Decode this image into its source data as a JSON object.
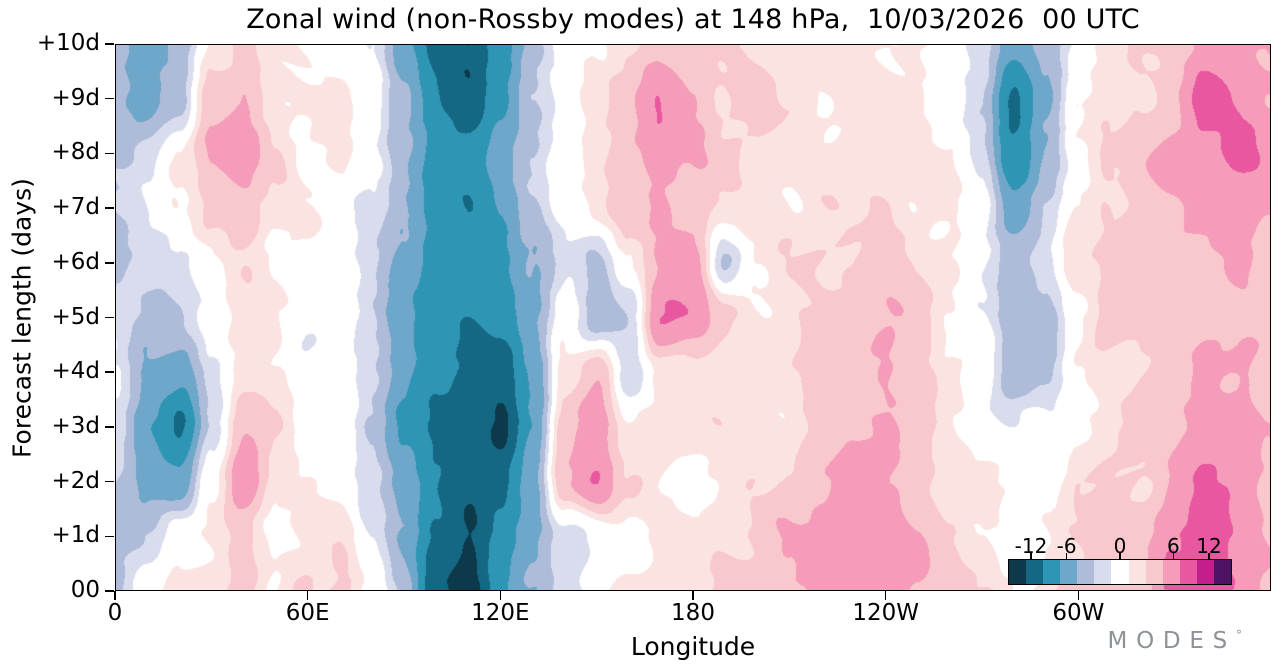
{
  "title": "Zonal wind (non-Rossby modes) at 148 hPa,  10/03/2026  00 UTC",
  "axes": {
    "x": {
      "label": "Longitude",
      "range_deg": [
        0,
        360
      ],
      "ticks": [
        {
          "value": 0,
          "label": "0"
        },
        {
          "value": 60,
          "label": "60E"
        },
        {
          "value": 120,
          "label": "120E"
        },
        {
          "value": 180,
          "label": "180"
        },
        {
          "value": 240,
          "label": "120W"
        },
        {
          "value": 300,
          "label": "60W"
        }
      ]
    },
    "y": {
      "label": "Forecast length (days)",
      "range_days": [
        0,
        10
      ],
      "ticks": [
        {
          "value": 0,
          "label": "00"
        },
        {
          "value": 1,
          "label": "+1d"
        },
        {
          "value": 2,
          "label": "+2d"
        },
        {
          "value": 3,
          "label": "+3d"
        },
        {
          "value": 4,
          "label": "+4d"
        },
        {
          "value": 5,
          "label": "+5d"
        },
        {
          "value": 6,
          "label": "+6d"
        },
        {
          "value": 7,
          "label": "+7d"
        },
        {
          "value": 8,
          "label": "+8d"
        },
        {
          "value": 9,
          "label": "+9d"
        },
        {
          "value": 10,
          "label": "+10d"
        }
      ]
    }
  },
  "colorbar": {
    "labels": [
      "-12",
      "-6",
      "0",
      "6",
      "12"
    ],
    "label_values": [
      -12,
      -6,
      0,
      6,
      12
    ],
    "thresholds": [
      -13,
      -10,
      -7,
      -4.5,
      -2.5,
      -1,
      1,
      2.5,
      4.5,
      7,
      10,
      13
    ],
    "colors": [
      "#0d3a4a",
      "#156883",
      "#2f95b5",
      "#6ea7c9",
      "#aebcd9",
      "#d9dcec",
      "#ffffff",
      "#fbe3e1",
      "#f8c8cd",
      "#f49cba",
      "#e8579f",
      "#c21f8c",
      "#4f1163"
    ]
  },
  "logo": {
    "text": "MODES",
    "mark": "°"
  },
  "chart_data": {
    "type": "heatmap",
    "title": "Zonal wind (non-Rossby modes) at 148 hPa,  10/03/2026  00 UTC",
    "xlabel": "Longitude",
    "ylabel": "Forecast length (days)",
    "legend_position": "inside bottom-right colorbar",
    "x_longitude_deg": [
      0,
      10,
      20,
      30,
      40,
      50,
      60,
      70,
      80,
      90,
      100,
      110,
      120,
      130,
      140,
      150,
      160,
      170,
      180,
      190,
      200,
      210,
      220,
      230,
      240,
      250,
      260,
      270,
      280,
      290,
      300,
      310,
      320,
      330,
      340,
      350,
      360
    ],
    "y_forecast_days": [
      0,
      1,
      2,
      3,
      4,
      5,
      6,
      7,
      8,
      9,
      10
    ],
    "values": [
      [
        -3,
        0,
        1,
        2,
        4,
        1,
        3,
        3,
        0,
        -4,
        -12,
        -14,
        -8,
        -5,
        -2,
        0,
        1,
        2,
        2,
        3,
        3,
        4,
        5,
        6,
        7,
        5,
        3,
        2,
        1,
        2,
        3,
        3,
        4,
        7,
        9,
        7,
        4
      ],
      [
        -3,
        -2,
        0,
        1,
        3,
        1,
        2,
        2,
        -1,
        -5,
        -11,
        -13,
        -9,
        -5,
        -1,
        0,
        0,
        1,
        2,
        2,
        3,
        4,
        5,
        6,
        6,
        5,
        3,
        1,
        0,
        1,
        2,
        3,
        4,
        7,
        9,
        6,
        4
      ],
      [
        -2,
        -5,
        -7,
        0,
        7,
        2,
        1,
        1,
        -2,
        -6,
        -10,
        -12,
        -10,
        -6,
        4,
        7,
        2,
        1,
        1,
        2,
        2,
        3,
        4,
        5,
        5,
        4,
        2,
        1,
        0,
        0,
        2,
        3,
        3,
        5,
        7,
        6,
        4
      ],
      [
        -2,
        -7,
        -10,
        -2,
        4,
        2,
        0,
        1,
        -3,
        -7,
        -10,
        -11,
        -14,
        -7,
        3,
        6,
        2,
        2,
        1,
        2,
        2,
        2,
        3,
        4,
        5,
        3,
        1,
        0,
        -1,
        0,
        1,
        2,
        3,
        4,
        6,
        6,
        4
      ],
      [
        -1,
        -5,
        -6,
        -1,
        2,
        1,
        0,
        0,
        -3,
        -6,
        -9,
        -10,
        -13,
        -7,
        2,
        4,
        -2,
        2,
        2,
        1,
        2,
        2,
        3,
        4,
        5,
        3,
        1,
        0,
        -3,
        -3,
        1,
        2,
        2,
        3,
        5,
        5,
        3
      ],
      [
        -2,
        -3,
        -2,
        0,
        1,
        1,
        0,
        0,
        -2,
        -6,
        -9,
        -11,
        -9,
        -5,
        0,
        -3,
        -2,
        7,
        6,
        3,
        2,
        2,
        3,
        4,
        4,
        3,
        1,
        0,
        -4,
        -3,
        1,
        3,
        3,
        4,
        4,
        4,
        3
      ],
      [
        -3,
        -2,
        -1,
        1,
        2,
        1,
        0,
        -1,
        -2,
        -5,
        -8,
        -10,
        -8,
        -4,
        -1,
        -3,
        1,
        5,
        5,
        -3,
        1,
        2,
        3,
        3,
        4,
        2,
        1,
        0,
        -3,
        -2,
        2,
        3,
        3,
        4,
        4,
        5,
        4
      ],
      [
        -2,
        -1,
        0,
        3,
        5,
        2,
        1,
        0,
        -2,
        -5,
        -8,
        -9,
        -7,
        -3,
        0,
        1,
        3,
        5,
        4,
        2,
        1,
        1,
        2,
        2,
        3,
        2,
        1,
        -1,
        -6,
        -3,
        1,
        3,
        4,
        4,
        5,
        6,
        5
      ],
      [
        -3,
        -2,
        1,
        5,
        6,
        3,
        1,
        1,
        -1,
        -4,
        -8,
        -9,
        -6,
        -3,
        1,
        2,
        4,
        6,
        5,
        3,
        2,
        1,
        1,
        2,
        2,
        2,
        1,
        -2,
        -9,
        -4,
        0,
        3,
        4,
        5,
        6,
        8,
        6
      ],
      [
        -3,
        -5,
        -4,
        3,
        5,
        2,
        1,
        2,
        0,
        -5,
        -10,
        -12,
        -7,
        -3,
        0,
        2,
        3,
        7,
        5,
        3,
        3,
        2,
        1,
        1,
        2,
        2,
        0,
        -3,
        -11,
        -5,
        0,
        2,
        3,
        4,
        8,
        6,
        5
      ],
      [
        -4,
        -6,
        -4,
        1,
        3,
        1,
        1,
        1,
        -1,
        -6,
        -11,
        -13,
        -8,
        -4,
        -1,
        1,
        2,
        4,
        4,
        3,
        2,
        2,
        1,
        1,
        1,
        1,
        0,
        -2,
        -7,
        -3,
        0,
        2,
        3,
        3,
        5,
        5,
        4
      ]
    ]
  }
}
